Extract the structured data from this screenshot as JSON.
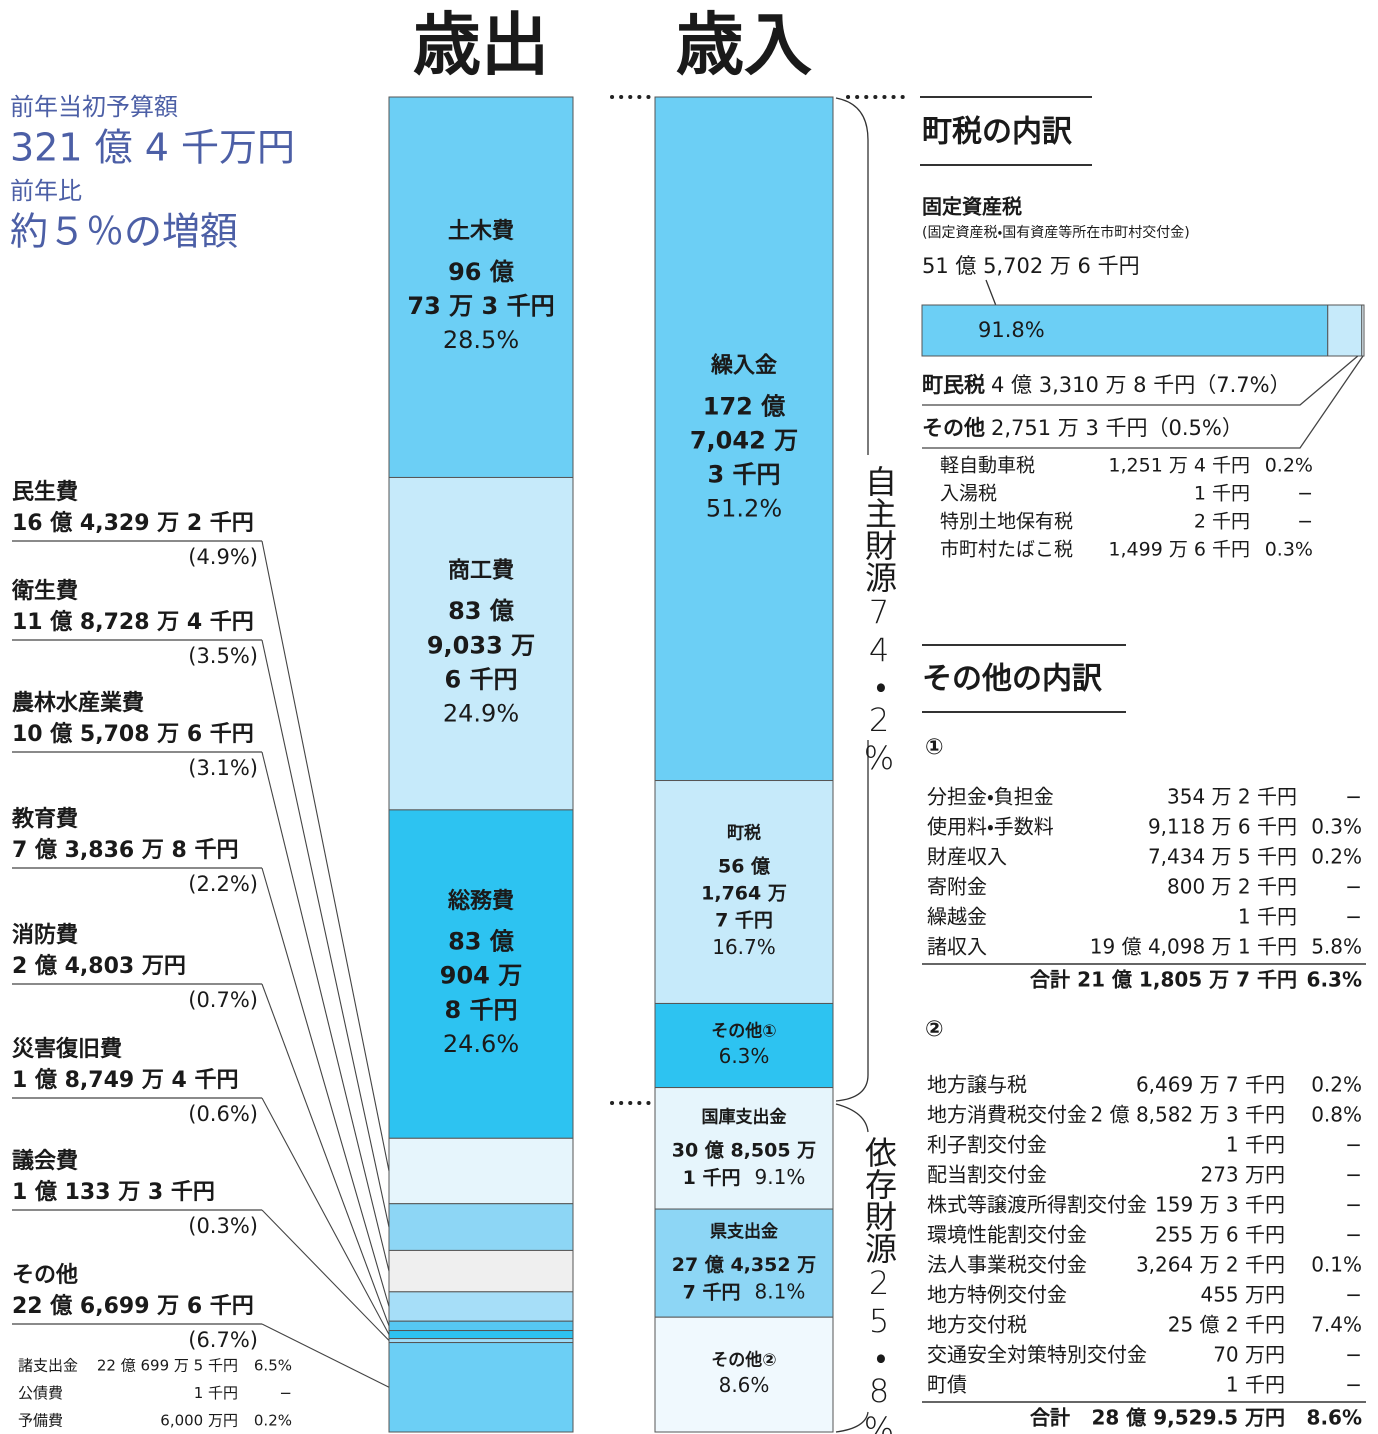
{
  "summary": {
    "prior_label": "前年当初予算額",
    "prior_amount": "321 億 4 千万円",
    "ratio_label": "前年比",
    "ratio": "約５％の増額"
  },
  "expenditure": {
    "title": "歳出",
    "segments": [
      {
        "name": "土木費",
        "amount": [
          "96 億",
          "73 万 3 千円"
        ],
        "share": {
          "value": 28.5,
          "label": "28.5%"
        },
        "color": "#6ccff5"
      },
      {
        "name": "商工費",
        "amount": [
          "83 億",
          "9,033 万",
          "6 千円"
        ],
        "share": {
          "value": 24.9,
          "label": "24.9%"
        },
        "color": "#c6eafa"
      },
      {
        "name": "総務費",
        "amount": [
          "83 億",
          "904 万",
          "8 千円"
        ],
        "share": {
          "value": 24.6,
          "label": "24.6%"
        },
        "color": "#2dc3f1"
      },
      {
        "name": "民生費",
        "amount": "16 億 4,329 万 2 千円",
        "share": {
          "value": 4.9,
          "label": "(4.9%)"
        },
        "color": "#e6f5fc"
      },
      {
        "name": "衛生費",
        "amount": "11 億 8,728 万 4 千円",
        "share": {
          "value": 3.5,
          "label": "(3.5%)"
        },
        "color": "#8dd6f5"
      },
      {
        "name": "農林水産業費",
        "amount": "10 億 5,708 万 6 千円",
        "share": {
          "value": 3.1,
          "label": "(3.1%)"
        },
        "color": "#efefef"
      },
      {
        "name": "教育費",
        "amount": "7 億 3,836 万 8 千円",
        "share": {
          "value": 2.2,
          "label": "(2.2%)"
        },
        "color": "#a6def8"
      },
      {
        "name": "消防費",
        "amount": "2 億 4,803 万円",
        "share": {
          "value": 0.7,
          "label": "(0.7%)"
        },
        "color": "#56c8f2"
      },
      {
        "name": "災害復旧費",
        "amount": "1 億 8,749 万 4 千円",
        "share": {
          "value": 0.6,
          "label": "(0.6%)"
        },
        "color": "#2dc3f1"
      },
      {
        "name": "議会費",
        "amount": "1 億 133 万 3 千円",
        "share": {
          "value": 0.3,
          "label": "(0.3%)"
        },
        "color": "#9fdcf7"
      },
      {
        "name": "その他",
        "amount": "22 億 6,699 万 6 千円",
        "share": {
          "value": 6.7,
          "label": "(6.7%)"
        },
        "color": "#6ccff5"
      }
    ],
    "other_detail": [
      [
        "諸支出金",
        "22 億 699 万 5 千円",
        "6.5%"
      ],
      [
        "公債費",
        "1 千円",
        "−"
      ],
      [
        "予備費",
        "6,000 万円",
        "0.2%"
      ]
    ]
  },
  "revenue": {
    "title": "歳入",
    "segments": [
      {
        "name": "繰入金",
        "amount": [
          "172 億",
          "7,042 万",
          "3 千円"
        ],
        "share": {
          "value": 51.2,
          "label": "51.2%"
        },
        "color": "#6ccff5"
      },
      {
        "name": "町税",
        "amount": [
          "56 億",
          "1,764 万",
          "7 千円"
        ],
        "share": {
          "value": 16.7,
          "label": "16.7%"
        },
        "color": "#c6eafa"
      },
      {
        "name": "その他①",
        "amount": [],
        "share": {
          "value": 6.3,
          "label": "6.3%"
        },
        "color": "#2dc3f1"
      },
      {
        "name": "国庫支出金",
        "amount": [
          "30 億 8,505 万",
          "1 千円"
        ],
        "share": {
          "value": 9.1,
          "label": "9.1%"
        },
        "color": "#e6f5fc"
      },
      {
        "name": "県支出金",
        "amount": [
          "27 億 4,352 万",
          "7 千円"
        ],
        "share": {
          "value": 8.1,
          "label": "8.1%"
        },
        "color": "#8dd6f5"
      },
      {
        "name": "その他②",
        "amount": [],
        "share": {
          "value": 8.6,
          "label": "8.6%"
        },
        "color": "#f0f9fe"
      }
    ],
    "groups": [
      {
        "label": "自主財源74・2%"
      },
      {
        "label": "依存財源25・8%"
      }
    ]
  },
  "town_tax": {
    "title": "町税の内訳",
    "main": {
      "name": "固定資産税",
      "note": "(固定資産税・国有資産等所在市町村交付金)",
      "amount": "51 億 5,702 万 6 千円",
      "share": {
        "value": 91.8,
        "label": "91.8%"
      },
      "color": "#6ccff5"
    },
    "items": [
      {
        "name": "町民税",
        "amount": "4 億 3,310 万 8 千円",
        "share": {
          "value": 7.7,
          "label": "（7.7%）"
        },
        "color": "#c6eafa"
      },
      {
        "name": "その他",
        "amount": "2,751 万 3 千円",
        "share": {
          "value": 0.5,
          "label": "（0.5%）"
        },
        "color": "#e6f5fc"
      }
    ],
    "other_detail": [
      [
        "軽自動車税",
        "1,251 万 4 千円",
        "0.2%"
      ],
      [
        "入湯税",
        "1 千円",
        "−"
      ],
      [
        "特別土地保有税",
        "2 千円",
        "−"
      ],
      [
        "市町村たばこ税",
        "1,499 万 6 千円",
        "0.3%"
      ]
    ]
  },
  "other_breakdown": {
    "title": "その他の内訳",
    "groups": [
      {
        "label": "①",
        "rows": [
          [
            "分担金・負担金",
            "354 万 2 千円",
            "−"
          ],
          [
            "使用料・手数料",
            "9,118 万 6 千円",
            "0.3%"
          ],
          [
            "財産収入",
            "7,434 万 5 千円",
            "0.2%"
          ],
          [
            "寄附金",
            "800 万 2 千円",
            "−"
          ],
          [
            "繰越金",
            "1 千円",
            "−"
          ],
          [
            "諸収入",
            "19 億 4,098 万 1 千円",
            "5.8%"
          ]
        ],
        "total": [
          "合計",
          "21 億 1,805 万 7 千円",
          "6.3%"
        ]
      },
      {
        "label": "②",
        "rows": [
          [
            "地方譲与税",
            "6,469 万 7 千円",
            "0.2%"
          ],
          [
            "地方消費税交付金",
            "2 億 8,582 万 3 千円",
            "0.8%"
          ],
          [
            "利子割交付金",
            "1 千円",
            "−"
          ],
          [
            "配当割交付金",
            "273 万円",
            "−"
          ],
          [
            "株式等譲渡所得割交付金",
            "159 万 3 千円",
            "−"
          ],
          [
            "環境性能割交付金",
            "255 万 6 千円",
            "−"
          ],
          [
            "法人事業税交付金",
            "3,264 万 2 千円",
            "0.1%"
          ],
          [
            "地方特例交付金",
            "455 万円",
            "−"
          ],
          [
            "地方交付税",
            "25 億 2 千円",
            "7.4%"
          ],
          [
            "交通安全対策特別交付金",
            "70 万円",
            "−"
          ],
          [
            "町債",
            "1 千円",
            "−"
          ]
        ],
        "total": [
          "合計",
          "28 億 9,529.5 万円",
          "8.6%"
        ]
      }
    ]
  }
}
